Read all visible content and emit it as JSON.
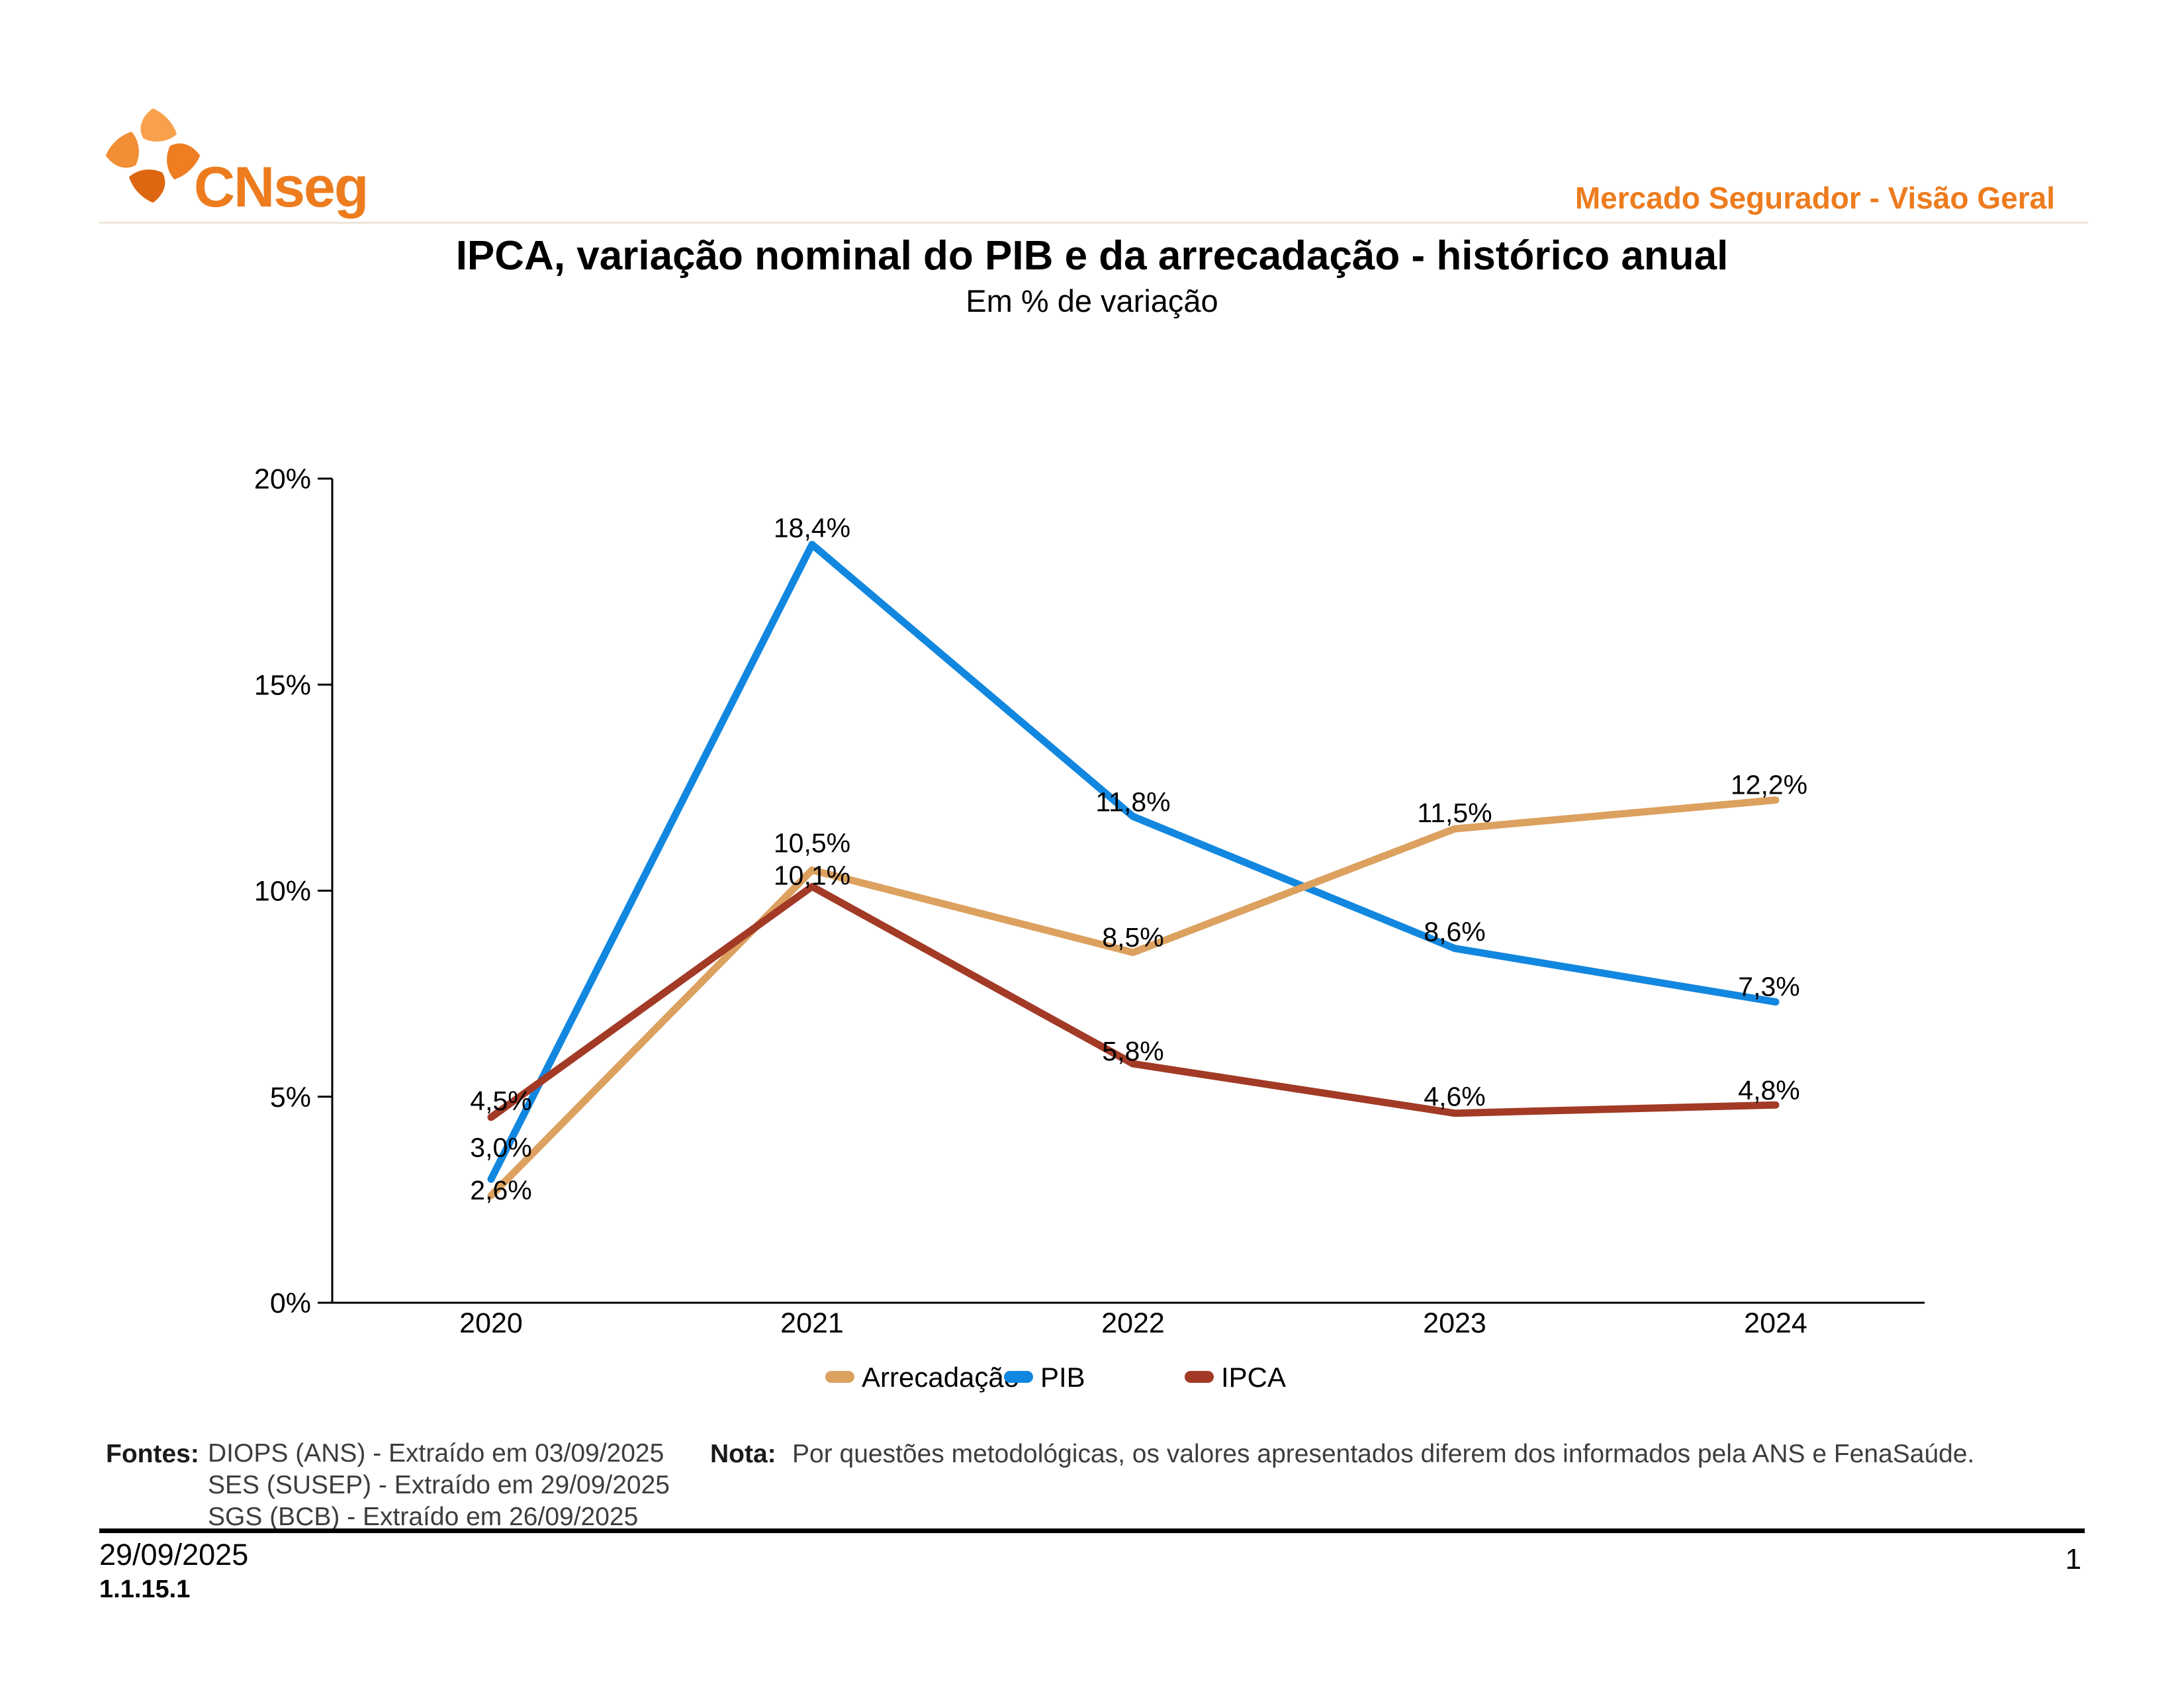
{
  "header": {
    "logo_text": "CNseg",
    "right_title": "Mercado Segurador - Visão Geral"
  },
  "title": "IPCA, variação nominal do PIB e da arrecadação - histórico anual",
  "subtitle": "Em % de variação",
  "chart_data": {
    "type": "line",
    "title": "IPCA, variação nominal do PIB e da arrecadação - histórico anual",
    "subtitle": "Em % de variação",
    "categories": [
      "2020",
      "2021",
      "2022",
      "2023",
      "2024"
    ],
    "series": [
      {
        "name": "Arrecadação",
        "color": "#DCA15F",
        "values": [
          2.6,
          10.5,
          8.5,
          11.5,
          12.2
        ],
        "labels": [
          "2,6%",
          "10,5%",
          "8,5%",
          "11,5%",
          "12,2%"
        ]
      },
      {
        "name": "PIB",
        "color": "#1187E0",
        "values": [
          3.0,
          18.4,
          11.8,
          8.6,
          7.3
        ],
        "labels": [
          "3,0%",
          "18,4%",
          "11,8%",
          "8,6%",
          "7,3%"
        ]
      },
      {
        "name": "IPCA",
        "color": "#A23A26",
        "values": [
          4.5,
          10.1,
          5.8,
          4.6,
          4.8
        ],
        "labels": [
          "4,5%",
          "10,1%",
          "5,8%",
          "4,6%",
          "4,8%"
        ]
      }
    ],
    "y_ticks": [
      {
        "value": 0,
        "label": "0%"
      },
      {
        "value": 5,
        "label": "5%"
      },
      {
        "value": 10,
        "label": "10%"
      },
      {
        "value": 15,
        "label": "15%"
      },
      {
        "value": 20,
        "label": "20%"
      }
    ],
    "ylim": [
      0,
      20
    ],
    "xlabel": "",
    "ylabel": "",
    "grid": false,
    "legend_position": "bottom"
  },
  "footer": {
    "fontes_label": "Fontes:",
    "fontes": [
      "DIOPS (ANS) -  Extraído em 03/09/2025",
      "SES (SUSEP) -  Extraído em 29/09/2025",
      "SGS (BCB) -  Extraído em 26/09/2025"
    ],
    "nota_label": "Nota:",
    "nota": "Por questões metodológicas, os valores apresentados diferem dos informados pela ANS e FenaSaúde.",
    "date": "29/09/2025",
    "version": "1.1.15.1",
    "page": "1"
  }
}
